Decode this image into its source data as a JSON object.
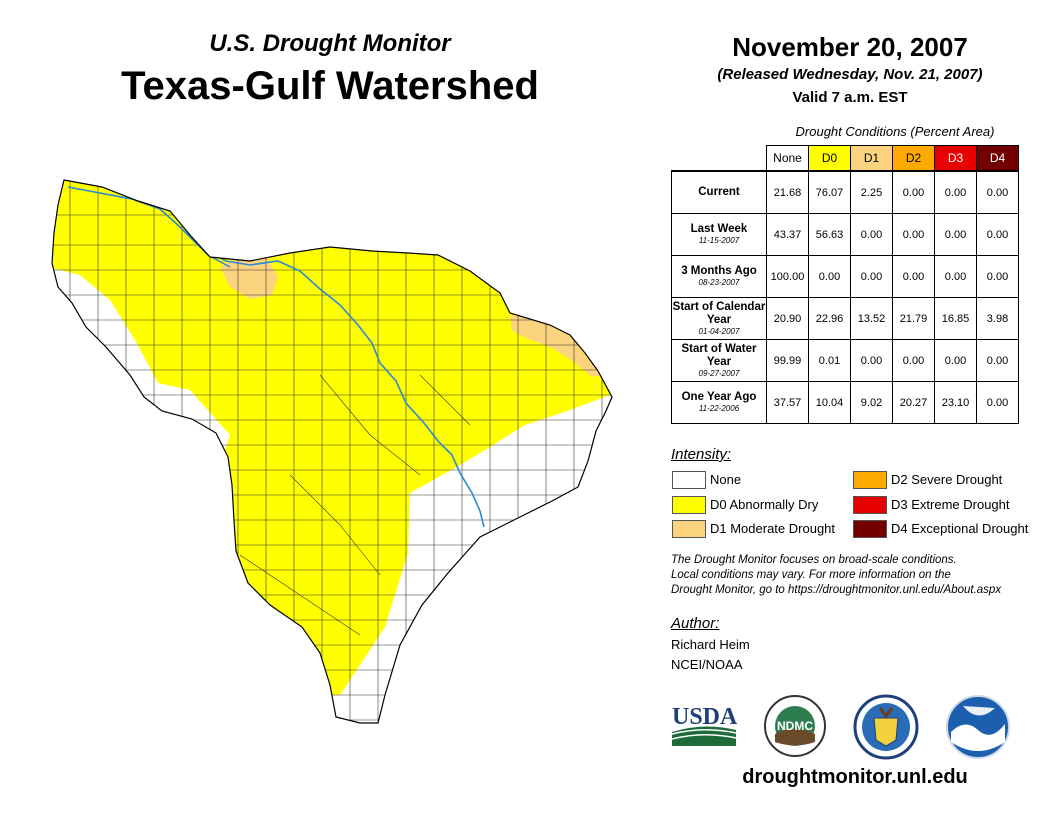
{
  "header": {
    "subtitle": "U.S. Drought Monitor",
    "title": "Texas-Gulf Watershed",
    "date": "November 20, 2007",
    "released": "(Released Wednesday, Nov. 21, 2007)",
    "valid": "Valid 7 a.m. EST"
  },
  "table": {
    "caption": "Drought Conditions (Percent Area)",
    "columns": [
      "None",
      "D0",
      "D1",
      "D2",
      "D3",
      "D4"
    ],
    "rows": [
      {
        "label": "Current",
        "date": "",
        "values": [
          "21.68",
          "76.07",
          "2.25",
          "0.00",
          "0.00",
          "0.00"
        ]
      },
      {
        "label": "Last Week",
        "date": "11-15-2007",
        "values": [
          "43.37",
          "56.63",
          "0.00",
          "0.00",
          "0.00",
          "0.00"
        ]
      },
      {
        "label": "3 Months Ago",
        "date": "08-23-2007",
        "values": [
          "100.00",
          "0.00",
          "0.00",
          "0.00",
          "0.00",
          "0.00"
        ]
      },
      {
        "label": "Start of Calendar Year",
        "date": "01-04-2007",
        "values": [
          "20.90",
          "22.96",
          "13.52",
          "21.79",
          "16.85",
          "3.98"
        ]
      },
      {
        "label": "Start of Water Year",
        "date": "09-27-2007",
        "values": [
          "99.99",
          "0.01",
          "0.00",
          "0.00",
          "0.00",
          "0.00"
        ]
      },
      {
        "label": "One Year Ago",
        "date": "11-22-2006",
        "values": [
          "37.57",
          "10.04",
          "9.02",
          "20.27",
          "23.10",
          "0.00"
        ]
      }
    ]
  },
  "legend": {
    "title": "Intensity:",
    "items": [
      {
        "label": "None",
        "color": "#ffffff"
      },
      {
        "label": "D0 Abnormally Dry",
        "color": "#ffff00"
      },
      {
        "label": "D1 Moderate Drought",
        "color": "#fcd37f"
      },
      {
        "label": "D2 Severe Drought",
        "color": "#ffaa00"
      },
      {
        "label": "D3 Extreme Drought",
        "color": "#e60000"
      },
      {
        "label": "D4 Exceptional Drought",
        "color": "#730000"
      }
    ]
  },
  "note": {
    "line1": "The Drought Monitor focuses on broad-scale conditions.",
    "line2": "Local conditions may vary. For more information on the",
    "line3": "Drought Monitor, go to https://droughtmonitor.unl.edu/About.aspx"
  },
  "author": {
    "title": "Author:",
    "name": "Richard Heim",
    "org": "NCEI/NOAA"
  },
  "logos": {
    "usda": "USDA",
    "ndmc": "NDMC",
    "noaa": "NOAA"
  },
  "website": "droughtmonitor.unl.edu"
}
